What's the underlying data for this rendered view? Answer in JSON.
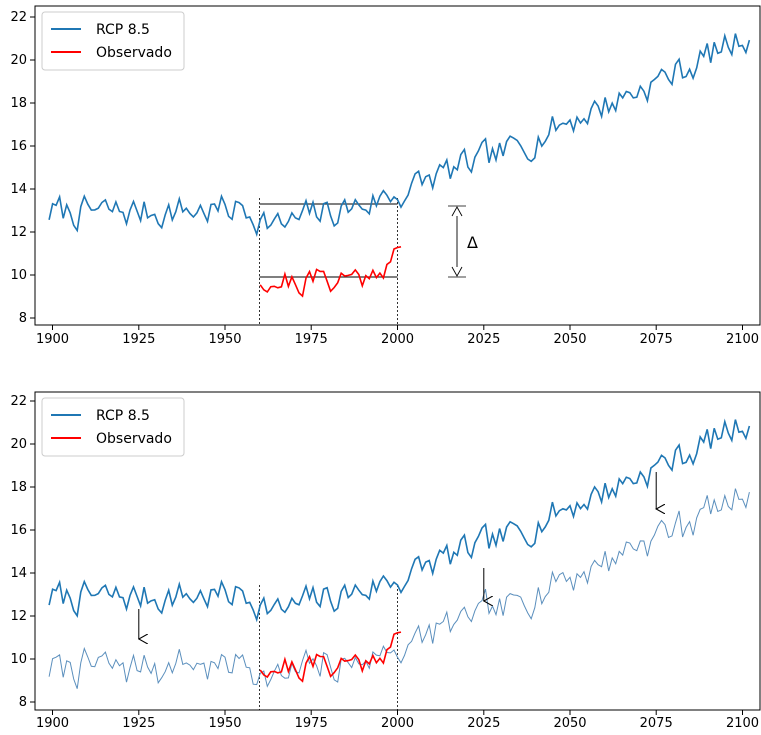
{
  "chart_data": [
    {
      "type": "line",
      "title": "",
      "xlabel": "",
      "ylabel": "",
      "xlim": [
        1896,
        2102
      ],
      "ylim": [
        7.6,
        22.6
      ],
      "xticks": [
        1900,
        1925,
        1950,
        1975,
        2000,
        2025,
        2050,
        2075,
        2100
      ],
      "yticks": [
        8,
        10,
        12,
        14,
        16,
        18,
        20,
        22
      ],
      "grid": false,
      "legend_position": "top-left",
      "series": [
        {
          "name": "RCP 8.5",
          "color": "#1f77b4",
          "x_range": [
            1900,
            2099
          ],
          "anchors": [
            [
              1900,
              12.9
            ],
            [
              1910,
              12.9
            ],
            [
              1920,
              12.9
            ],
            [
              1930,
              12.95
            ],
            [
              1940,
              13.0
            ],
            [
              1950,
              13.0
            ],
            [
              1955,
              13.1
            ],
            [
              1960,
              12.7
            ],
            [
              1965,
              12.2
            ],
            [
              1970,
              12.4
            ],
            [
              1975,
              12.8
            ],
            [
              1980,
              12.9
            ],
            [
              1985,
              13.1
            ],
            [
              1990,
              13.3
            ],
            [
              1995,
              13.6
            ],
            [
              2000,
              13.8
            ],
            [
              2005,
              14.2
            ],
            [
              2010,
              14.6
            ],
            [
              2020,
              15.1
            ],
            [
              2030,
              15.7
            ],
            [
              2040,
              16.6
            ],
            [
              2050,
              17.4
            ],
            [
              2060,
              18.1
            ],
            [
              2070,
              18.9
            ],
            [
              2080,
              19.6
            ],
            [
              2090,
              20.5
            ],
            [
              2099,
              21.3
            ]
          ],
          "noise": 0.42,
          "seed": 7
        },
        {
          "name": "Observado",
          "color": "#ff0000",
          "x_range": [
            1960,
            2000
          ],
          "anchors": [
            [
              1960,
              9.8
            ],
            [
              1970,
              9.6
            ],
            [
              1980,
              9.8
            ],
            [
              1990,
              9.9
            ],
            [
              1993,
              10.3
            ],
            [
              1995,
              10.6
            ],
            [
              2000,
              11.0
            ]
          ],
          "noise": 0.38,
          "seed": 21
        }
      ],
      "annotations": {
        "vlines": [
          1960,
          2000
        ],
        "hlines": [
          {
            "y": 13.25,
            "x": [
              1960,
              2000
            ]
          },
          {
            "y": 9.85,
            "x": [
              1960,
              2000
            ]
          }
        ],
        "delta": {
          "label": "Δ",
          "x": 2017,
          "y": [
            9.85,
            13.25
          ]
        }
      }
    },
    {
      "type": "line",
      "title": "",
      "xlabel": "",
      "ylabel": "",
      "xlim": [
        1896,
        2102
      ],
      "ylim": [
        7.6,
        22.6
      ],
      "xticks": [
        1900,
        1925,
        1950,
        1975,
        2000,
        2025,
        2050,
        2075,
        2100
      ],
      "yticks": [
        8,
        10,
        12,
        14,
        16,
        18,
        20,
        22
      ],
      "grid": false,
      "legend_position": "top-left",
      "series": [
        {
          "name": "RCP 8.5",
          "color": "#1f77b4",
          "x_range": [
            1900,
            2099
          ],
          "anchors": [
            [
              1900,
              12.9
            ],
            [
              1910,
              12.9
            ],
            [
              1920,
              12.9
            ],
            [
              1930,
              12.95
            ],
            [
              1940,
              13.0
            ],
            [
              1950,
              13.0
            ],
            [
              1955,
              13.1
            ],
            [
              1960,
              12.7
            ],
            [
              1965,
              12.2
            ],
            [
              1970,
              12.4
            ],
            [
              1975,
              12.8
            ],
            [
              1980,
              12.9
            ],
            [
              1985,
              13.1
            ],
            [
              1990,
              13.3
            ],
            [
              1995,
              13.6
            ],
            [
              2000,
              13.8
            ],
            [
              2005,
              14.2
            ],
            [
              2010,
              14.6
            ],
            [
              2020,
              15.1
            ],
            [
              2030,
              15.7
            ],
            [
              2040,
              16.6
            ],
            [
              2050,
              17.4
            ],
            [
              2060,
              18.1
            ],
            [
              2070,
              18.9
            ],
            [
              2080,
              19.6
            ],
            [
              2090,
              20.5
            ],
            [
              2099,
              21.3
            ]
          ],
          "noise": 0.42,
          "seed": 7
        },
        {
          "name": "Observado",
          "color": "#ff0000",
          "x_range": [
            1960,
            2000
          ],
          "anchors": [
            [
              1960,
              9.8
            ],
            [
              1970,
              9.6
            ],
            [
              1980,
              9.8
            ],
            [
              1990,
              9.9
            ],
            [
              1993,
              10.3
            ],
            [
              1995,
              10.6
            ],
            [
              2000,
              11.0
            ]
          ],
          "noise": 0.38,
          "seed": 21
        },
        {
          "name": "",
          "color": "#5b8fbd",
          "x_range": [
            1900,
            2099
          ],
          "offset_from_series": 0,
          "offset": -3.25,
          "noise": 0.25,
          "seed": 13
        }
      ],
      "annotations": {
        "vlines": [
          1960,
          2000
        ],
        "arrows": [
          {
            "x": 1925,
            "y": [
              12.5,
              10.9
            ]
          },
          {
            "x": 2025,
            "y": [
              14.2,
              12.5
            ]
          },
          {
            "x": 2075,
            "y": [
              18.8,
              17.0
            ]
          }
        ]
      }
    }
  ]
}
